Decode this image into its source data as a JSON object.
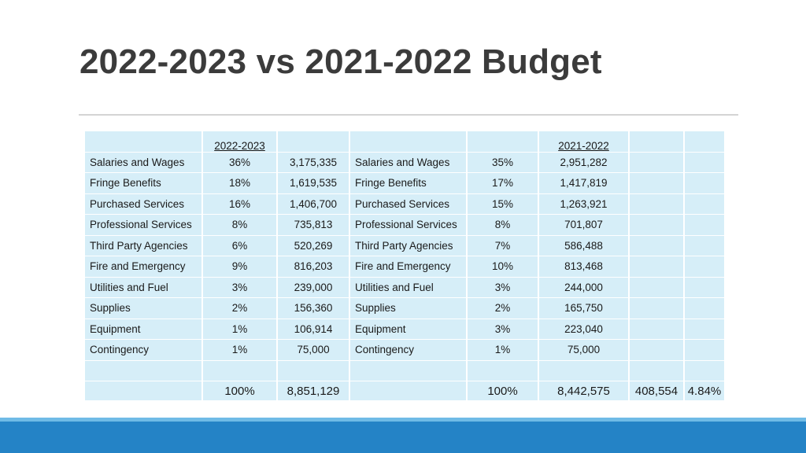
{
  "title": "2022-2023 vs 2021-2022 Budget",
  "headers": {
    "year_current": "2022-2023",
    "year_prior": "2021-2022"
  },
  "rows": [
    {
      "label": "Salaries and Wages",
      "pct_2223": "36%",
      "amt_2223": "3,175,335",
      "label_prior": "Salaries and Wages",
      "pct_2122": "35%",
      "amt_2122": "2,951,282"
    },
    {
      "label": "Fringe Benefits",
      "pct_2223": "18%",
      "amt_2223": "1,619,535",
      "label_prior": "Fringe Benefits",
      "pct_2122": "17%",
      "amt_2122": "1,417,819"
    },
    {
      "label": "Purchased Services",
      "pct_2223": "16%",
      "amt_2223": "1,406,700",
      "label_prior": "Purchased Services",
      "pct_2122": "15%",
      "amt_2122": "1,263,921"
    },
    {
      "label": "Professional Services",
      "pct_2223": "8%",
      "amt_2223": "735,813",
      "label_prior": "Professional Services",
      "pct_2122": "8%",
      "amt_2122": "701,807"
    },
    {
      "label": "Third Party Agencies",
      "pct_2223": "6%",
      "amt_2223": "520,269",
      "label_prior": "Third Party Agencies",
      "pct_2122": "7%",
      "amt_2122": "586,488"
    },
    {
      "label": "Fire and Emergency",
      "pct_2223": "9%",
      "amt_2223": "816,203",
      "label_prior": "Fire and Emergency",
      "pct_2122": "10%",
      "amt_2122": "813,468"
    },
    {
      "label": "Utilities and Fuel",
      "pct_2223": "3%",
      "amt_2223": "239,000",
      "label_prior": "Utilities and Fuel",
      "pct_2122": "3%",
      "amt_2122": "244,000"
    },
    {
      "label": "Supplies",
      "pct_2223": "2%",
      "amt_2223": "156,360",
      "label_prior": "Supplies",
      "pct_2122": "2%",
      "amt_2122": "165,750"
    },
    {
      "label": "Equipment",
      "pct_2223": "1%",
      "amt_2223": "106,914",
      "label_prior": "Equipment",
      "pct_2122": "3%",
      "amt_2122": "223,040"
    },
    {
      "label": "Contingency",
      "pct_2223": "1%",
      "amt_2223": "75,000",
      "label_prior": "Contingency",
      "pct_2122": "1%",
      "amt_2122": "75,000"
    }
  ],
  "totals": {
    "pct_2223": "100%",
    "amt_2223": "8,851,129",
    "pct_2122": "100%",
    "amt_2122": "8,442,575",
    "difference": "408,554",
    "percent_change": "4.84%"
  },
  "colors": {
    "cell_fill": "#d6eef8",
    "footer_bar": "#2483c6",
    "footer_stripe": "#6fbbe6",
    "title_text": "#3b3b3b"
  }
}
